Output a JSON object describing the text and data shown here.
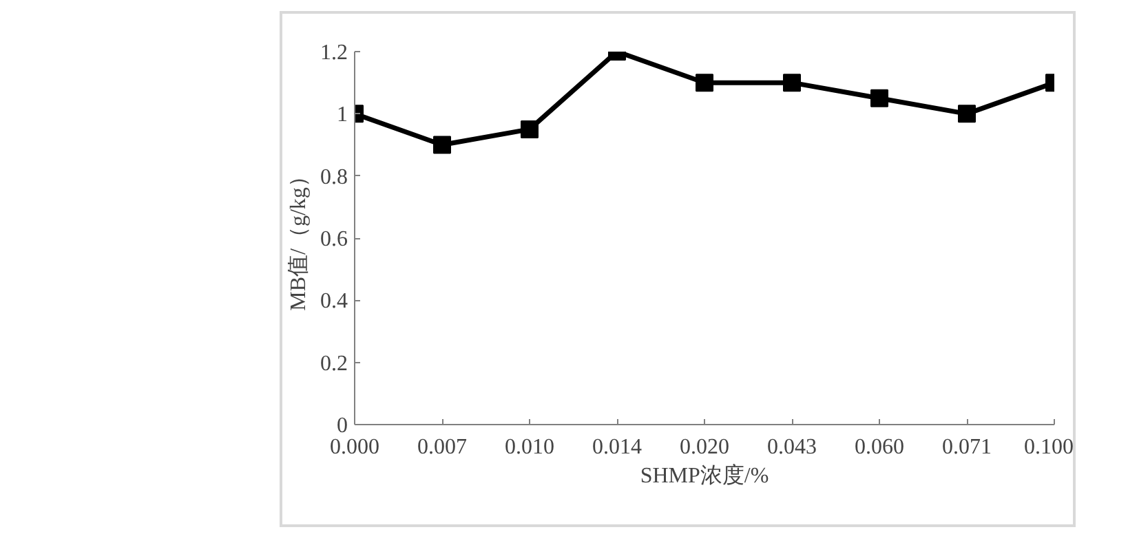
{
  "chart_data": {
    "type": "line",
    "xlabel": "SHMP浓度/%",
    "ylabel": "MB值/（g/kg）",
    "categories": [
      "0.000",
      "0.007",
      "0.010",
      "0.014",
      "0.020",
      "0.043",
      "0.060",
      "0.071",
      "0.100"
    ],
    "series": [
      {
        "color": "#000000",
        "values": [
          1.0,
          0.9,
          0.95,
          1.2,
          1.1,
          1.1,
          1.05,
          1.0,
          1.1
        ]
      }
    ],
    "ylim": [
      0,
      1.2
    ],
    "yticks": [
      0,
      0.2,
      0.4,
      0.6,
      0.8,
      1,
      1.2
    ],
    "grid": false,
    "marker": "square",
    "line_style": "solid"
  }
}
